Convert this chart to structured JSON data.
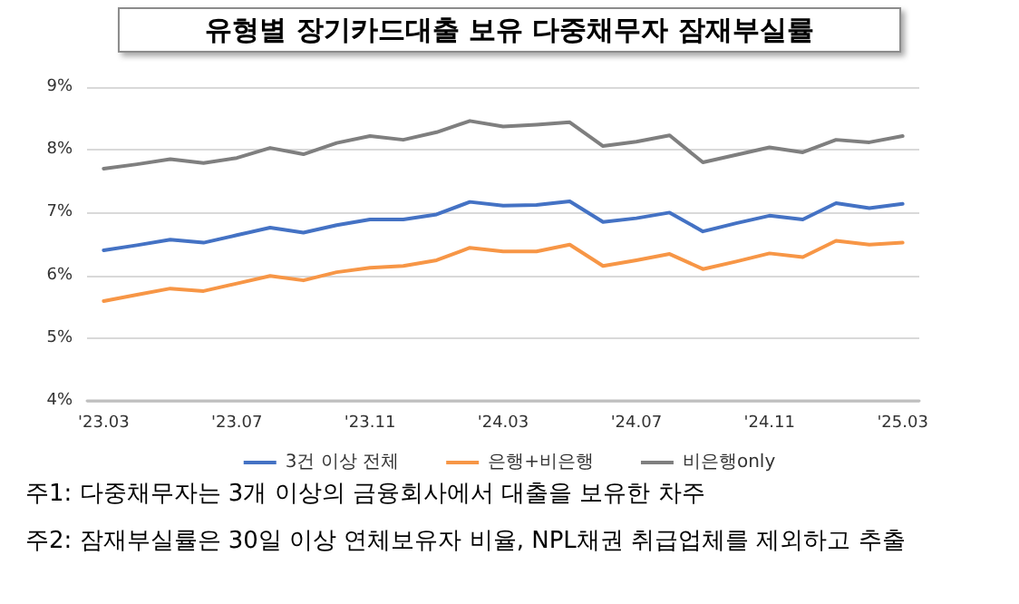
{
  "chart_data": {
    "type": "line",
    "title": "유형별 장기카드대출 보유 다중채무자 잠재부실률",
    "categories": [
      "'23.03",
      null,
      null,
      null,
      "'23.07",
      null,
      null,
      null,
      "'23.11",
      null,
      null,
      null,
      "'24.03",
      null,
      null,
      null,
      "'24.07",
      null,
      null,
      null,
      "'24.11",
      null,
      null,
      null,
      "'25.03"
    ],
    "series": [
      {
        "name": "3건 이상 전체",
        "color": "#4472c4",
        "values": [
          6.4,
          6.48,
          6.57,
          6.52,
          6.64,
          6.76,
          6.68,
          6.8,
          6.89,
          6.89,
          6.97,
          7.17,
          7.11,
          7.12,
          7.18,
          6.85,
          6.91,
          7.0,
          6.7,
          6.83,
          6.95,
          6.89,
          7.15,
          7.07,
          7.14
        ]
      },
      {
        "name": "은행+비은행",
        "color": "#f79646",
        "values": [
          5.59,
          5.69,
          5.79,
          5.75,
          5.87,
          5.99,
          5.92,
          6.05,
          6.12,
          6.15,
          6.24,
          6.44,
          6.38,
          6.38,
          6.49,
          6.15,
          6.24,
          6.34,
          6.1,
          6.22,
          6.35,
          6.29,
          6.55,
          6.49,
          6.52
        ]
      },
      {
        "name": "비은행only",
        "color": "#7f7f7f",
        "values": [
          7.7,
          7.77,
          7.85,
          7.79,
          7.87,
          8.03,
          7.93,
          8.11,
          8.22,
          8.16,
          8.28,
          8.46,
          8.37,
          8.4,
          8.44,
          8.06,
          8.13,
          8.23,
          7.8,
          7.92,
          8.04,
          7.96,
          8.16,
          8.12,
          8.22
        ]
      }
    ],
    "ylim": [
      4,
      9
    ],
    "yticks": [
      {
        "value": 4,
        "label": "4%"
      },
      {
        "value": 5,
        "label": "5%"
      },
      {
        "value": 6,
        "label": "6%"
      },
      {
        "value": 7,
        "label": "7%"
      },
      {
        "value": 8,
        "label": "8%"
      },
      {
        "value": 9,
        "label": "9%"
      }
    ],
    "grid": "y",
    "legend": "bottom",
    "marker": "none",
    "line_style": "solid",
    "annotations": [
      "주1: 다중채무자는 3개 이상의 금융회사에서 대출을 보유한 차주",
      "주2: 잠재부실률은 30일 이상 연체보유자 비율, NPL채권 취급업체를 제외하고 추출"
    ]
  }
}
